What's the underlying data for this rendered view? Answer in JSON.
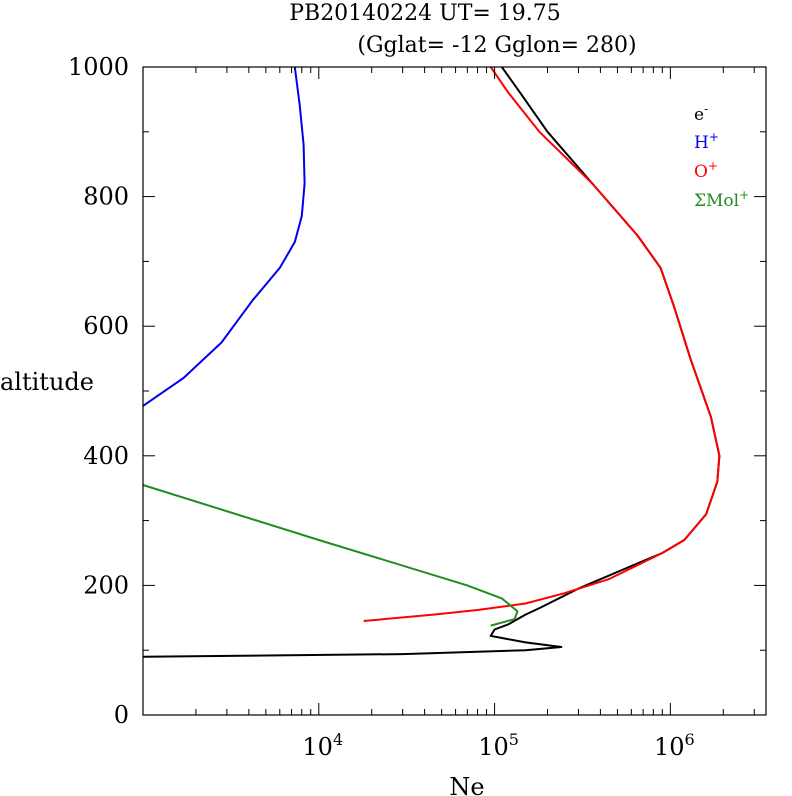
{
  "title": {
    "line1": "PB20140224   UT=  19.75",
    "line2": "(Gglat= -12   Gglon=  280)"
  },
  "chart_data": {
    "type": "line",
    "xlabel": "Ne",
    "ylabel": "altitude",
    "x_scale": "log",
    "xlim": [
      1000,
      3500000
    ],
    "ylim": [
      0,
      1000
    ],
    "x_ticks": [
      {
        "value": 10000,
        "base": "10",
        "exp": "4"
      },
      {
        "value": 100000,
        "base": "10",
        "exp": "5"
      },
      {
        "value": 1000000,
        "base": "10",
        "exp": "6"
      }
    ],
    "y_ticks": [
      0,
      200,
      400,
      600,
      800,
      1000
    ],
    "legend_position": "top-right",
    "series": [
      {
        "name": "e",
        "name_sup": "-",
        "color": "#000000",
        "points": [
          [
            1000,
            90
          ],
          [
            30000,
            94
          ],
          [
            150000,
            100
          ],
          [
            240000,
            105
          ],
          [
            150000,
            112
          ],
          [
            95000,
            122
          ],
          [
            100000,
            132
          ],
          [
            120000,
            140
          ],
          [
            150000,
            155
          ],
          [
            180000,
            165
          ],
          [
            300000,
            195
          ],
          [
            600000,
            230
          ],
          [
            900000,
            250
          ],
          [
            1200000,
            270
          ],
          [
            1600000,
            310
          ],
          [
            1850000,
            360
          ],
          [
            1900000,
            400
          ],
          [
            1700000,
            460
          ],
          [
            1300000,
            550
          ],
          [
            1050000,
            630
          ],
          [
            880000,
            690
          ],
          [
            650000,
            740
          ],
          [
            360000,
            820
          ],
          [
            200000,
            900
          ],
          [
            140000,
            960
          ],
          [
            110000,
            1000
          ]
        ]
      },
      {
        "name": "H",
        "name_sup": "+",
        "color": "#0000ee",
        "points": [
          [
            1000,
            477
          ],
          [
            1700,
            520
          ],
          [
            2800,
            575
          ],
          [
            4200,
            640
          ],
          [
            6000,
            690
          ],
          [
            7300,
            730
          ],
          [
            8000,
            770
          ],
          [
            8300,
            820
          ],
          [
            8200,
            880
          ],
          [
            7800,
            940
          ],
          [
            7300,
            1000
          ]
        ]
      },
      {
        "name": "O",
        "name_sup": "+",
        "color": "#ff0000",
        "points": [
          [
            18000,
            145
          ],
          [
            45000,
            155
          ],
          [
            80000,
            162
          ],
          [
            150000,
            172
          ],
          [
            250000,
            188
          ],
          [
            450000,
            210
          ],
          [
            900000,
            250
          ],
          [
            1200000,
            270
          ],
          [
            1600000,
            310
          ],
          [
            1850000,
            360
          ],
          [
            1900000,
            400
          ],
          [
            1700000,
            460
          ],
          [
            1300000,
            550
          ],
          [
            1050000,
            630
          ],
          [
            880000,
            690
          ],
          [
            650000,
            740
          ],
          [
            360000,
            820
          ],
          [
            180000,
            900
          ],
          [
            120000,
            960
          ],
          [
            95000,
            1000
          ]
        ]
      },
      {
        "name": "ΣMol",
        "name_sup": "+",
        "color": "#228b22",
        "points": [
          [
            1000,
            355
          ],
          [
            10000,
            270
          ],
          [
            70000,
            200
          ],
          [
            110000,
            180
          ],
          [
            135000,
            160
          ],
          [
            130000,
            148
          ],
          [
            95000,
            138
          ]
        ]
      }
    ]
  }
}
